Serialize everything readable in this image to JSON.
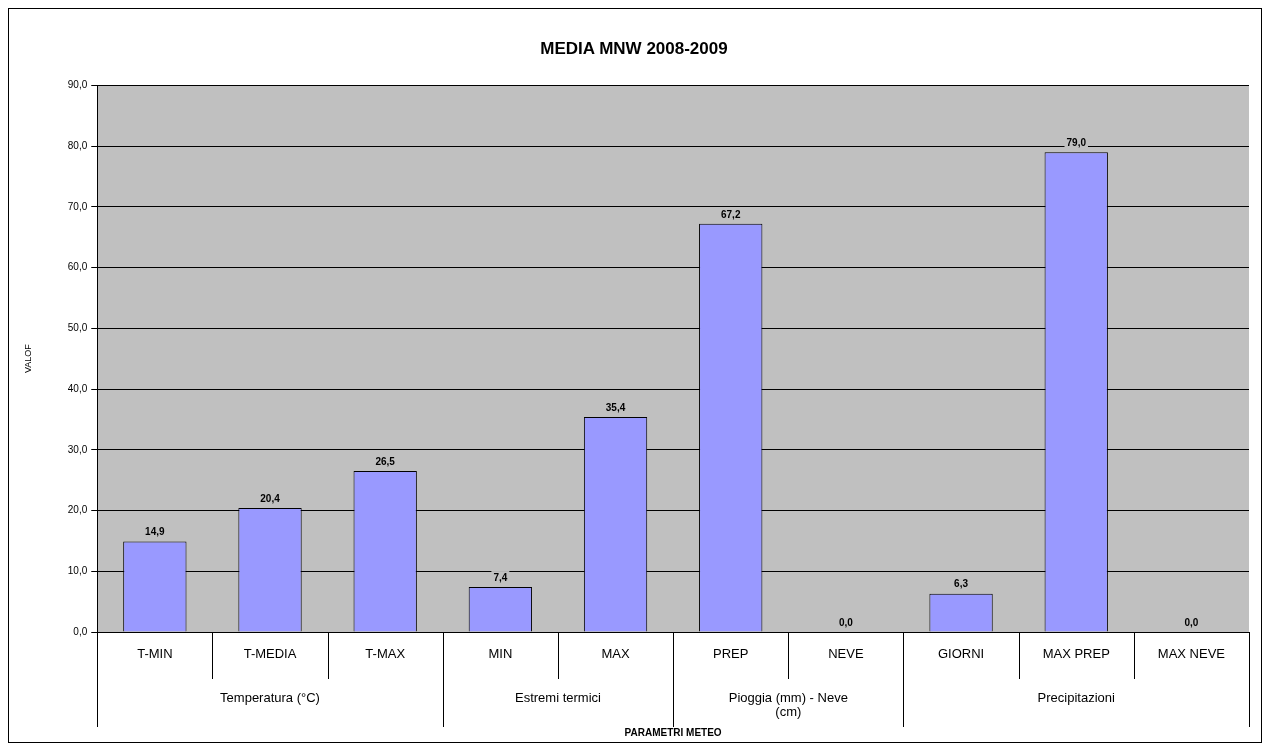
{
  "chart_data": {
    "type": "bar",
    "title": "MEDIA MNW 2008-2009",
    "ylabel": "VALOF",
    "categories": [
      "T-MIN",
      "T-MEDIA",
      "T-MAX",
      "MIN",
      "MAX",
      "PREP",
      "NEVE",
      "GIORNI",
      "MAX PREP",
      "MAX NEVE"
    ],
    "values": [
      14.9,
      20.4,
      26.5,
      7.4,
      35.4,
      67.2,
      0.0,
      6.3,
      79.0,
      0.0
    ],
    "value_labels": [
      "14,9",
      "20,4",
      "26,5",
      "7,4",
      "35,4",
      "67,2",
      "0,0",
      "6,3",
      "79,0",
      "0,0"
    ],
    "color": "#9999ff",
    "ylim": [
      0,
      90
    ],
    "yticks": [
      {
        "value": 0,
        "label": "0,0"
      },
      {
        "value": 10,
        "label": "10,0"
      },
      {
        "value": 20,
        "label": "20,0"
      },
      {
        "value": 30,
        "label": "30,0"
      },
      {
        "value": 40,
        "label": "40,0"
      },
      {
        "value": 50,
        "label": "50,0"
      },
      {
        "value": 60,
        "label": "60,0"
      },
      {
        "value": 70,
        "label": "70,0"
      },
      {
        "value": 80,
        "label": "80,0"
      },
      {
        "value": 90,
        "label": "90,0"
      }
    ],
    "grid": "y",
    "legend": false,
    "annotations": [
      "Temperatura (°C)",
      "Estremi termici",
      "Pioggia (mm) - Neve (cm)",
      "Precipitazioni",
      "PARAMETRI METEO"
    ]
  }
}
